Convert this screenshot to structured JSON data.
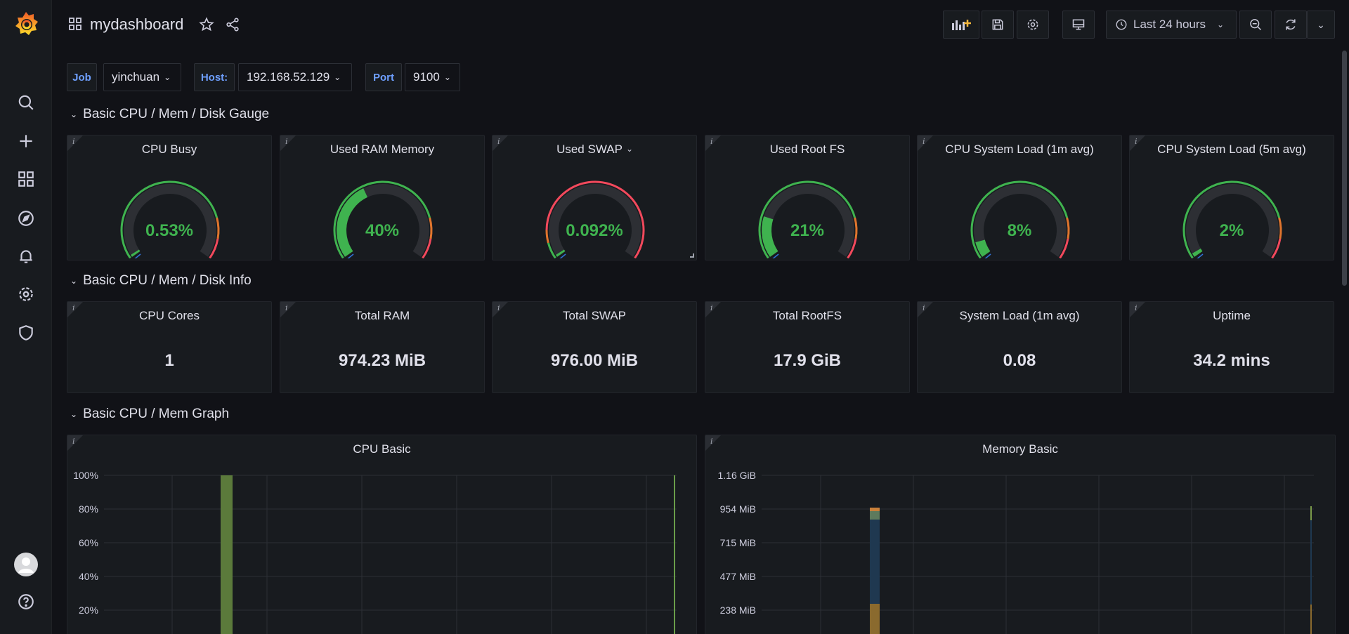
{
  "app": {
    "dashboard_title": "mydashboard",
    "time_range": "Last 24 hours"
  },
  "sidebar": {
    "items": [
      "grafana-logo",
      "search-icon",
      "plus-icon",
      "dashboards-icon",
      "explore-icon",
      "alerting-icon",
      "settings-icon",
      "shield-icon",
      "avatar",
      "help-icon"
    ]
  },
  "variables": [
    {
      "label": "Job",
      "value": "yinchuan"
    },
    {
      "label": "Host:",
      "value": "192.168.52.129"
    },
    {
      "label": "Port",
      "value": "9100"
    }
  ],
  "rows": {
    "gauge": "Basic CPU / Mem / Disk Gauge",
    "info": "Basic CPU / Mem / Disk Info",
    "graph": "Basic CPU / Mem Graph"
  },
  "gauges": [
    {
      "title": "CPU Busy",
      "value": "0.53%",
      "fraction": 0.0053
    },
    {
      "title": "Used RAM Memory",
      "value": "40%",
      "fraction": 0.4
    },
    {
      "title": "Used SWAP",
      "value": "0.092%",
      "fraction": 0.00092
    },
    {
      "title": "Used Root FS",
      "value": "21%",
      "fraction": 0.21
    },
    {
      "title": "CPU System Load (1m avg)",
      "value": "8%",
      "fraction": 0.08
    },
    {
      "title": "CPU System Load (5m avg)",
      "value": "2%",
      "fraction": 0.02
    }
  ],
  "stats": [
    {
      "title": "CPU Cores",
      "value": "1"
    },
    {
      "title": "Total RAM",
      "value": "974.23 MiB"
    },
    {
      "title": "Total SWAP",
      "value": "976.00 MiB"
    },
    {
      "title": "Total RootFS",
      "value": "17.9 GiB"
    },
    {
      "title": "System Load (1m avg)",
      "value": "0.08"
    },
    {
      "title": "Uptime",
      "value": "34.2 mins"
    }
  ],
  "graphs": {
    "cpu": {
      "title": "CPU Basic",
      "y_ticks": [
        "100%",
        "80%",
        "60%",
        "40%",
        "20%"
      ]
    },
    "memory": {
      "title": "Memory Basic",
      "y_ticks": [
        "1.16 GiB",
        "954 MiB",
        "715 MiB",
        "477 MiB",
        "238 MiB"
      ]
    }
  },
  "colors": {
    "ok": "#3fb34f",
    "warn": "#e0752d",
    "crit": "#f2495c",
    "accent": "#6e9fff"
  }
}
